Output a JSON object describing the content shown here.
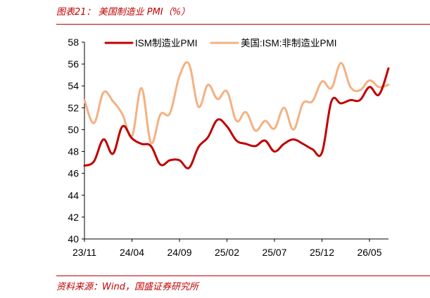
{
  "figure": {
    "title": "图表21：  美国制造业 PMI（%）",
    "source": "资料来源：Wind，国盛证券研究所"
  },
  "colors": {
    "accent": "#c00000",
    "ism_series": "#c00000",
    "nonmfg_series": "#f4b183"
  },
  "chart_data": {
    "type": "line",
    "title": "",
    "xlabel": "",
    "ylabel": "",
    "ylim": [
      40,
      58
    ],
    "yticks": [
      "40",
      "42",
      "44",
      "46",
      "48",
      "50",
      "52",
      "54",
      "56",
      "58"
    ],
    "xtick_labels": [
      "23/11",
      "24/04",
      "24/09",
      "25/02",
      "25/07",
      "25/12",
      "26/05"
    ],
    "grid": false,
    "legend_position": "top",
    "x": [
      "23/11",
      "23/12",
      "24/01",
      "24/02",
      "24/03",
      "24/04",
      "24/05",
      "24/06",
      "24/07",
      "24/08",
      "24/09",
      "24/10",
      "24/11",
      "24/12",
      "25/01",
      "25/02",
      "25/03",
      "25/04",
      "25/05",
      "25/06",
      "25/07",
      "25/08",
      "25/09",
      "25/10",
      "25/11",
      "25/12",
      "26/01",
      "26/02",
      "26/03",
      "26/04",
      "26/05",
      "26/06"
    ],
    "series": [
      {
        "name": "ISM制造业PMI",
        "values": [
          46.7,
          47.1,
          49.1,
          47.8,
          50.3,
          49.2,
          48.7,
          48.5,
          46.8,
          47.2,
          47.2,
          46.5,
          48.4,
          49.3,
          50.9,
          50.3,
          49.0,
          48.7,
          48.5,
          49.0,
          48.0,
          48.7,
          49.1,
          48.7,
          48.2,
          47.9,
          52.6,
          52.4,
          52.7,
          52.7,
          53.9,
          53.2
        ]
      },
      {
        "name": "美国:ISM:非制造业PMI",
        "values": [
          52.7,
          50.6,
          53.4,
          52.6,
          51.4,
          49.4,
          53.8,
          48.8,
          51.4,
          51.5,
          54.9,
          56.0,
          52.1,
          54.1,
          52.8,
          53.5,
          50.8,
          51.6,
          49.9,
          50.8,
          50.1,
          52.0,
          50.0,
          52.4,
          52.6,
          54.4,
          53.8,
          56.1,
          53.9,
          53.6,
          54.5,
          53.9
        ]
      }
    ],
    "series_tail": [
      55.6,
      54.1
    ]
  }
}
